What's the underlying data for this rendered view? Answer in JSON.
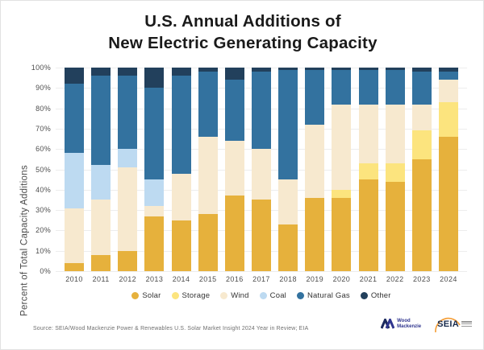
{
  "title": {
    "line1": "U.S. Annual Additions of",
    "line2": "New Electric Generating Capacity"
  },
  "chart_data": {
    "type": "bar",
    "stacked": true,
    "title": "U.S. Annual Additions of New Electric Generating Capacity",
    "ylabel": "Percent of Total Capacity Additions",
    "xlabel": "",
    "unit": "percent",
    "ylim": [
      0,
      100
    ],
    "grid": "horizontal",
    "legend_position": "bottom",
    "y_ticks": [
      "0%",
      "10%",
      "20%",
      "30%",
      "40%",
      "50%",
      "60%",
      "70%",
      "80%",
      "90%",
      "100%"
    ],
    "categories": [
      "2010",
      "2011",
      "2012",
      "2013",
      "2014",
      "2015",
      "2016",
      "2017",
      "2018",
      "2019",
      "2020",
      "2021",
      "2022",
      "2023",
      "2024"
    ],
    "series": [
      {
        "name": "Solar",
        "color": "#E6B13C",
        "values": [
          4,
          8,
          10,
          27,
          25,
          28,
          37,
          35,
          23,
          36,
          36,
          45,
          44,
          55,
          66
        ]
      },
      {
        "name": "Storage",
        "color": "#FCE47E",
        "values": [
          0,
          0,
          0,
          0,
          0,
          0,
          0,
          0,
          0,
          0,
          4,
          8,
          9,
          14,
          17
        ]
      },
      {
        "name": "Wind",
        "color": "#F7E9CF",
        "values": [
          27,
          27,
          41,
          5,
          23,
          38,
          27,
          25,
          22,
          36,
          42,
          29,
          29,
          13,
          11
        ]
      },
      {
        "name": "Coal",
        "color": "#BDDAF1",
        "values": [
          27,
          17,
          9,
          13,
          0,
          0,
          0,
          0,
          0,
          0,
          0,
          0,
          0,
          0,
          0
        ]
      },
      {
        "name": "Natural Gas",
        "color": "#33729F",
        "values": [
          34,
          44,
          36,
          45,
          48,
          32,
          30,
          38,
          54,
          27,
          17,
          17,
          17,
          16,
          4
        ]
      },
      {
        "name": "Other",
        "color": "#22405C",
        "values": [
          8,
          4,
          4,
          10,
          4,
          2,
          6,
          2,
          1,
          1,
          1,
          1,
          1,
          2,
          2
        ]
      }
    ]
  },
  "footer": {
    "source": "Source: SEIA/Wood Mackenzie Power & Renewables U.S. Solar Market Insight 2024 Year in Review; EIA",
    "logos": {
      "wood_mackenzie_line1": "Wood",
      "wood_mackenzie_line2": "Mackenzie",
      "seia": "SEIA"
    }
  }
}
